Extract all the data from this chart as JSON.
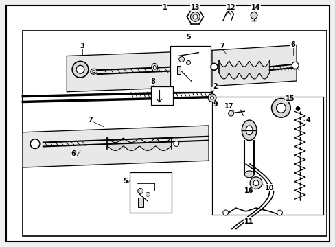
{
  "bg_color": "#f0f0f0",
  "diagram_bg": "#ffffff",
  "line_color": "#000000",
  "gray_fill": "#d8d8d8",
  "light_gray": "#e8e8e8",
  "fig_width": 4.89,
  "fig_height": 3.6,
  "dpi": 100
}
